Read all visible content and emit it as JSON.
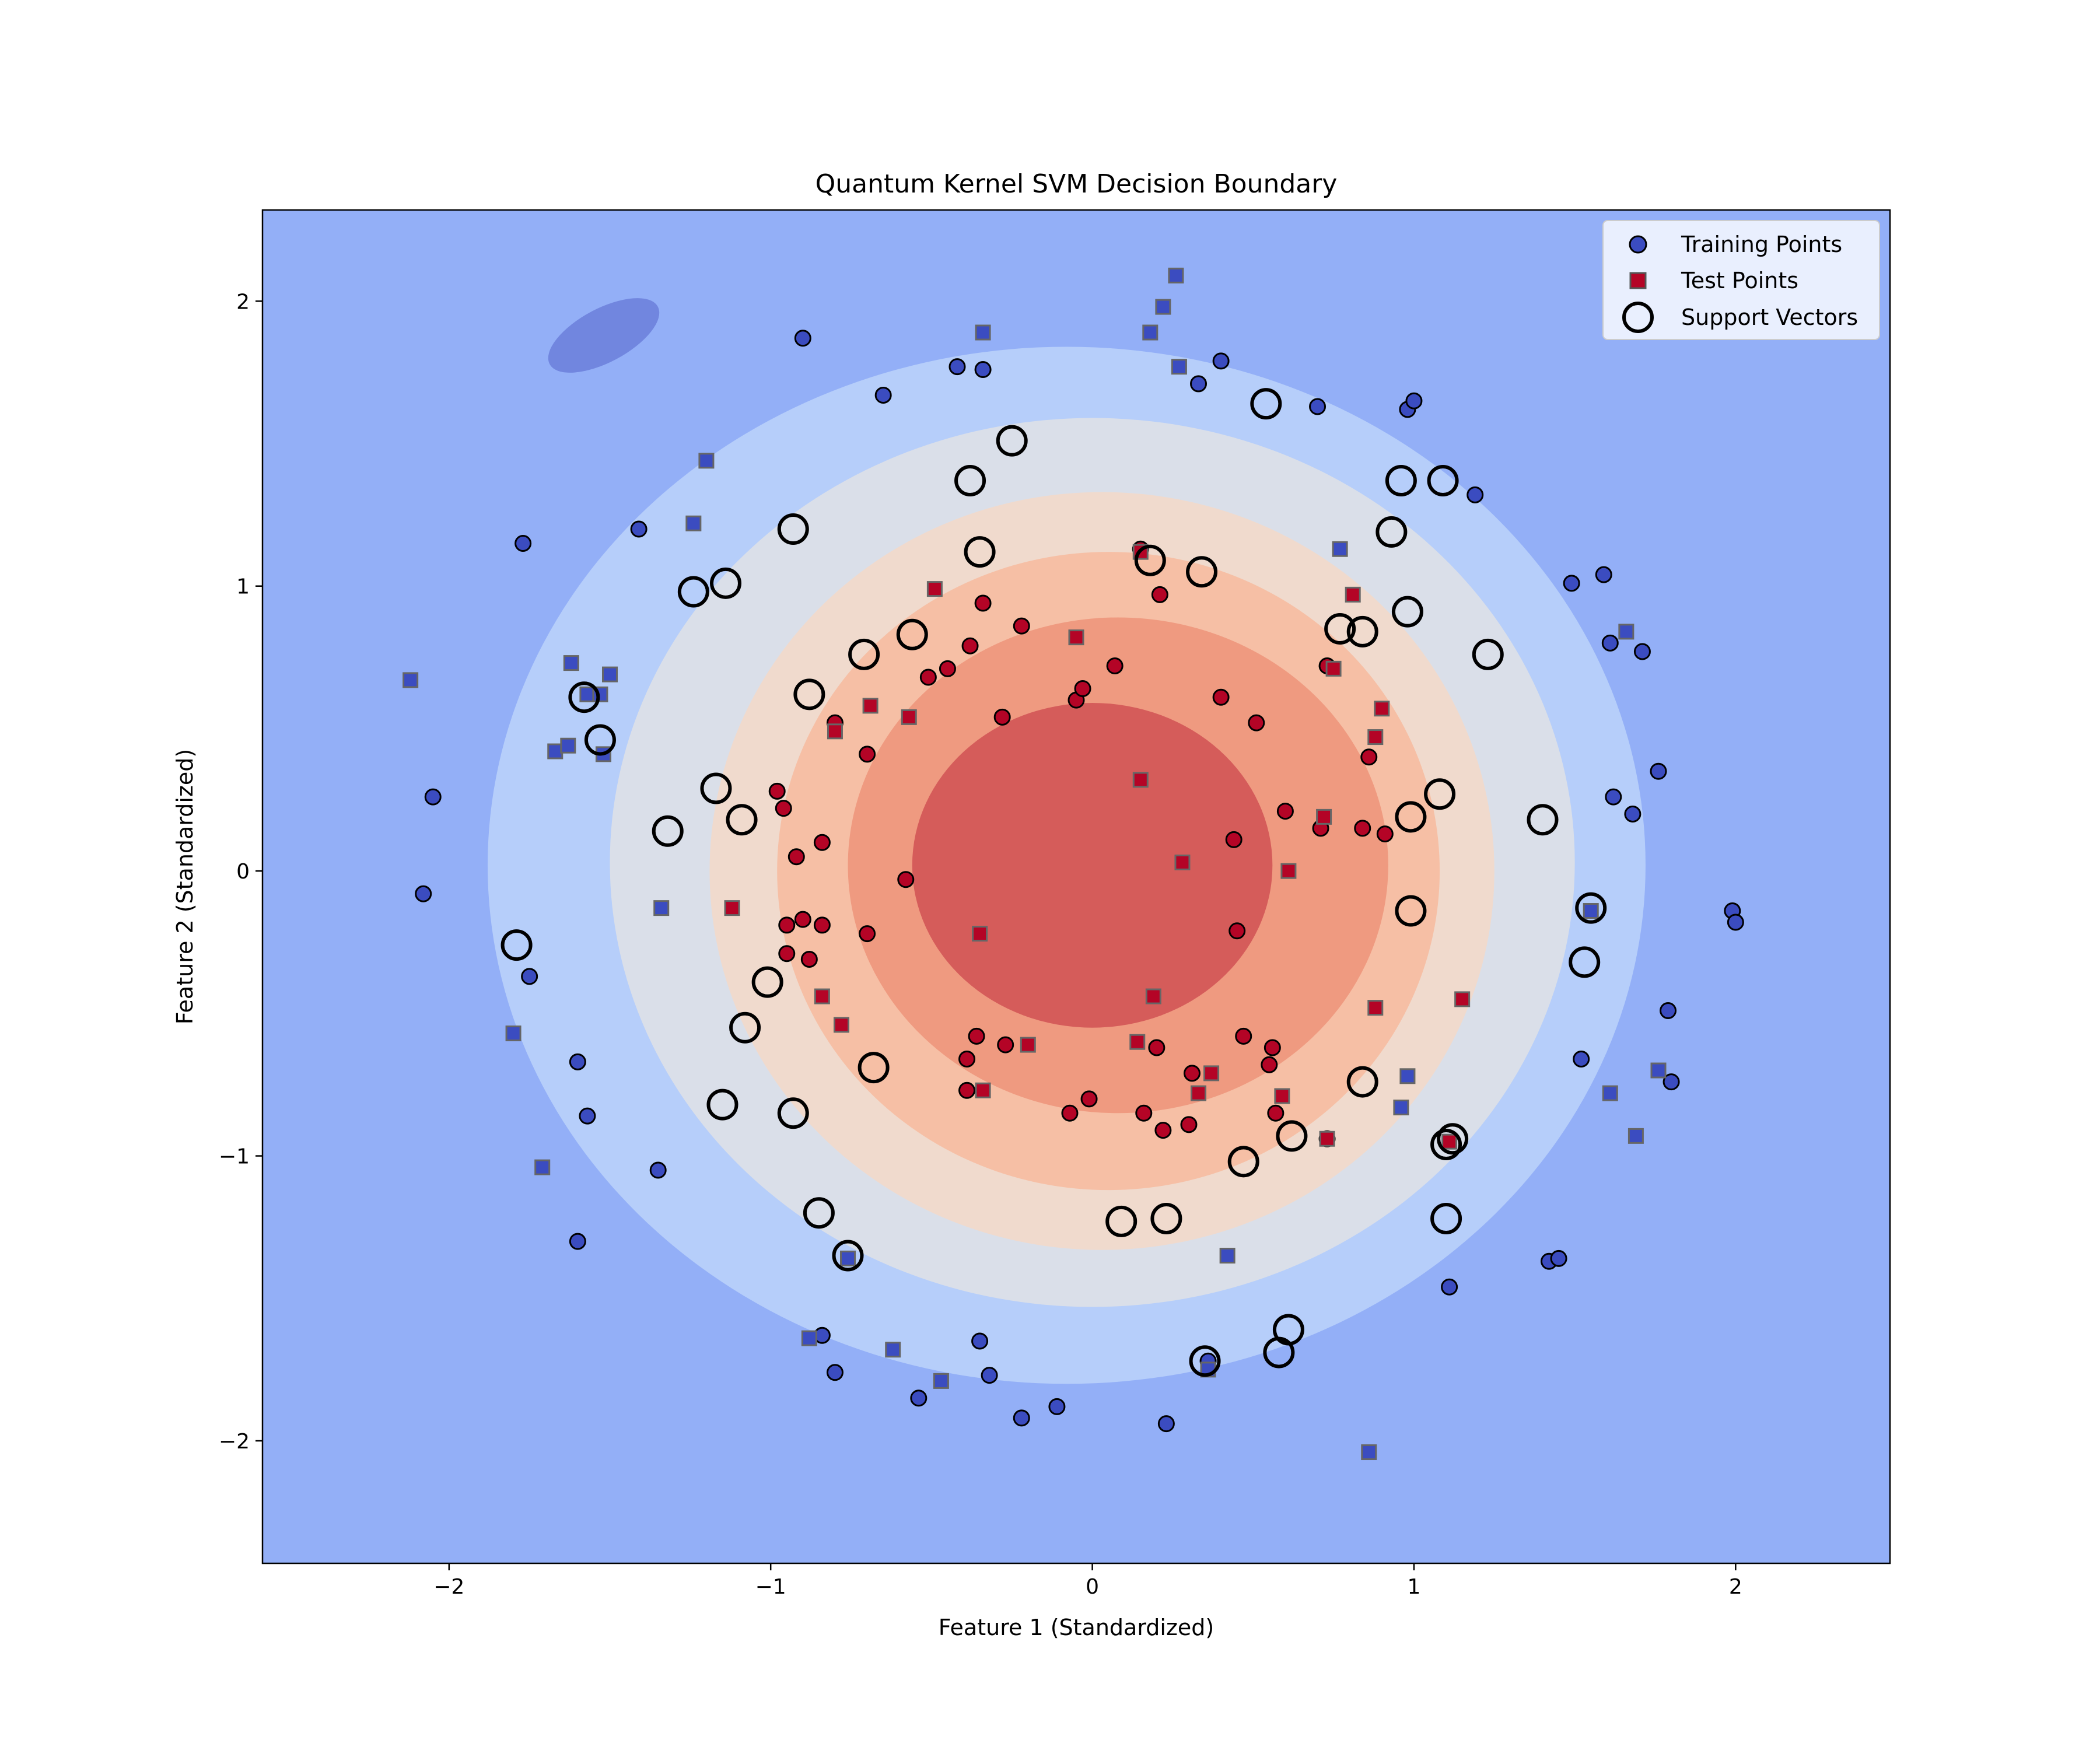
{
  "chart_data": {
    "type": "scatter",
    "title": "Quantum Kernel SVM Decision Boundary",
    "xlabel": "Feature 1 (Standardized)",
    "ylabel": "Feature 2 (Standardized)",
    "xlim": [
      -2.58,
      2.48
    ],
    "ylim": [
      -2.43,
      2.32
    ],
    "xticks": [
      -2,
      -1,
      0,
      1,
      2
    ],
    "yticks": [
      -2,
      -1,
      0,
      1,
      2
    ],
    "xtick_labels": [
      "−2",
      "−1",
      "0",
      "1",
      "2"
    ],
    "ytick_labels": [
      "−2",
      "−1",
      "0",
      "1",
      "2"
    ],
    "grid": false,
    "legend_position": "top-right",
    "colors": {
      "class0": "#3b4cc0",
      "class1": "#b40426",
      "background": "#93aff7",
      "edge": "#000000"
    },
    "decision_levels": [
      {
        "color": "#b6cefa",
        "rx": 1.8,
        "ry": 1.82,
        "cx": -0.08,
        "cy": 0.02
      },
      {
        "color": "#dadfe9",
        "rx": 1.5,
        "ry": 1.56,
        "cx": 0.0,
        "cy": 0.03
      },
      {
        "color": "#f0dacd",
        "rx": 1.22,
        "ry": 1.33,
        "cx": 0.03,
        "cy": 0.0
      },
      {
        "color": "#f6bfa5",
        "rx": 1.03,
        "ry": 1.12,
        "cx": 0.05,
        "cy": 0.0
      },
      {
        "color": "#ef9a80",
        "rx": 0.84,
        "ry": 0.87,
        "cx": 0.08,
        "cy": 0.02
      },
      {
        "color": "#d55c5a",
        "rx": 0.56,
        "ry": 0.57,
        "cx": 0.0,
        "cy": 0.02
      }
    ],
    "series": [
      {
        "name": "Training Points",
        "marker": "circle",
        "class0": [
          [
            -0.9,
            1.87
          ],
          [
            -0.42,
            1.77
          ],
          [
            -0.34,
            1.76
          ],
          [
            -0.65,
            1.67
          ],
          [
            0.33,
            1.71
          ],
          [
            0.4,
            1.79
          ],
          [
            0.7,
            1.63
          ],
          [
            0.98,
            1.62
          ],
          [
            1.0,
            1.65
          ],
          [
            -1.77,
            1.15
          ],
          [
            -1.41,
            1.2
          ],
          [
            1.19,
            1.32
          ],
          [
            1.49,
            1.01
          ],
          [
            1.59,
            1.04
          ],
          [
            1.61,
            0.8
          ],
          [
            1.71,
            0.77
          ],
          [
            1.76,
            0.35
          ],
          [
            1.62,
            0.26
          ],
          [
            1.68,
            0.2
          ],
          [
            -2.05,
            0.26
          ],
          [
            -2.08,
            -0.08
          ],
          [
            -1.75,
            -0.37
          ],
          [
            1.99,
            -0.14
          ],
          [
            2.0,
            -0.18
          ],
          [
            1.79,
            -0.49
          ],
          [
            1.52,
            -0.66
          ],
          [
            1.8,
            -0.74
          ],
          [
            -1.6,
            -0.67
          ],
          [
            -1.57,
            -0.86
          ],
          [
            -1.35,
            -1.05
          ],
          [
            -1.6,
            -1.3
          ],
          [
            -0.84,
            -1.63
          ],
          [
            -0.8,
            -1.76
          ],
          [
            -0.54,
            -1.85
          ],
          [
            -0.35,
            -1.65
          ],
          [
            -0.32,
            -1.77
          ],
          [
            -0.22,
            -1.92
          ],
          [
            -0.11,
            -1.88
          ],
          [
            0.23,
            -1.94
          ],
          [
            0.36,
            -1.72
          ],
          [
            1.11,
            -1.46
          ],
          [
            1.42,
            -1.37
          ],
          [
            1.45,
            -1.36
          ]
        ],
        "class1": [
          [
            0.15,
            1.13
          ],
          [
            0.21,
            0.97
          ],
          [
            -0.34,
            0.94
          ],
          [
            -0.22,
            0.86
          ],
          [
            -0.38,
            0.79
          ],
          [
            -0.51,
            0.68
          ],
          [
            -0.45,
            0.71
          ],
          [
            0.07,
            0.72
          ],
          [
            0.73,
            0.72
          ],
          [
            -0.05,
            0.6
          ],
          [
            -0.03,
            0.64
          ],
          [
            0.4,
            0.61
          ],
          [
            0.51,
            0.52
          ],
          [
            -0.28,
            0.54
          ],
          [
            -0.8,
            0.52
          ],
          [
            -0.7,
            0.41
          ],
          [
            0.86,
            0.4
          ],
          [
            -0.98,
            0.28
          ],
          [
            -0.96,
            0.22
          ],
          [
            0.6,
            0.21
          ],
          [
            0.71,
            0.15
          ],
          [
            0.84,
            0.15
          ],
          [
            0.91,
            0.13
          ],
          [
            -0.84,
            0.1
          ],
          [
            0.44,
            0.11
          ],
          [
            -0.92,
            0.05
          ],
          [
            -0.58,
            -0.03
          ],
          [
            -0.95,
            -0.19
          ],
          [
            -0.9,
            -0.17
          ],
          [
            -0.84,
            -0.19
          ],
          [
            -0.7,
            -0.22
          ],
          [
            0.45,
            -0.21
          ],
          [
            -0.95,
            -0.29
          ],
          [
            -0.88,
            -0.31
          ],
          [
            -0.36,
            -0.58
          ],
          [
            0.47,
            -0.58
          ],
          [
            -0.27,
            -0.61
          ],
          [
            0.2,
            -0.62
          ],
          [
            0.56,
            -0.62
          ],
          [
            -0.39,
            -0.66
          ],
          [
            0.55,
            -0.68
          ],
          [
            0.31,
            -0.71
          ],
          [
            -0.39,
            -0.77
          ],
          [
            -0.07,
            -0.85
          ],
          [
            -0.01,
            -0.8
          ],
          [
            0.16,
            -0.85
          ],
          [
            0.3,
            -0.89
          ],
          [
            0.57,
            -0.85
          ],
          [
            0.22,
            -0.91
          ],
          [
            0.73,
            -0.94
          ]
        ]
      },
      {
        "name": "Test Points",
        "marker": "square",
        "class0": [
          [
            0.26,
            2.09
          ],
          [
            0.22,
            1.98
          ],
          [
            0.18,
            1.89
          ],
          [
            0.27,
            1.77
          ],
          [
            -0.34,
            1.89
          ],
          [
            -1.2,
            1.44
          ],
          [
            -1.24,
            1.22
          ],
          [
            0.77,
            1.13
          ],
          [
            1.66,
            0.84
          ],
          [
            -2.12,
            0.67
          ],
          [
            -1.62,
            0.73
          ],
          [
            -1.5,
            0.69
          ],
          [
            -1.57,
            0.62
          ],
          [
            -1.53,
            0.62
          ],
          [
            -1.67,
            0.42
          ],
          [
            -1.63,
            0.44
          ],
          [
            -1.52,
            0.41
          ],
          [
            -1.34,
            -0.13
          ],
          [
            1.55,
            -0.14
          ],
          [
            -1.8,
            -0.57
          ],
          [
            -1.71,
            -1.04
          ],
          [
            0.98,
            -0.72
          ],
          [
            0.96,
            -0.83
          ],
          [
            1.61,
            -0.78
          ],
          [
            1.76,
            -0.7
          ],
          [
            1.69,
            -0.93
          ],
          [
            0.42,
            -1.35
          ],
          [
            -0.76,
            -1.36
          ],
          [
            -0.88,
            -1.64
          ],
          [
            -0.62,
            -1.68
          ],
          [
            -0.47,
            -1.79
          ],
          [
            0.36,
            -1.75
          ],
          [
            0.86,
            -2.04
          ]
        ],
        "class1": [
          [
            0.15,
            1.12
          ],
          [
            -0.49,
            0.99
          ],
          [
            0.81,
            0.97
          ],
          [
            -0.05,
            0.82
          ],
          [
            0.75,
            0.71
          ],
          [
            -0.69,
            0.58
          ],
          [
            -0.57,
            0.54
          ],
          [
            0.9,
            0.57
          ],
          [
            -0.8,
            0.49
          ],
          [
            0.88,
            0.47
          ],
          [
            0.15,
            0.32
          ],
          [
            0.72,
            0.19
          ],
          [
            0.61,
            0.0
          ],
          [
            0.28,
            0.03
          ],
          [
            -1.12,
            -0.13
          ],
          [
            -0.35,
            -0.22
          ],
          [
            -0.84,
            -0.44
          ],
          [
            0.19,
            -0.44
          ],
          [
            1.15,
            -0.45
          ],
          [
            0.88,
            -0.48
          ],
          [
            -0.78,
            -0.54
          ],
          [
            0.14,
            -0.6
          ],
          [
            -0.2,
            -0.61
          ],
          [
            0.37,
            -0.71
          ],
          [
            -0.34,
            -0.77
          ],
          [
            0.33,
            -0.78
          ],
          [
            0.59,
            -0.79
          ],
          [
            0.73,
            -0.94
          ],
          [
            1.11,
            -0.95
          ]
        ]
      },
      {
        "name": "Support Vectors",
        "marker": "ring",
        "class0": [
          [
            0.54,
            1.64
          ],
          [
            -0.25,
            1.51
          ],
          [
            -0.38,
            1.37
          ],
          [
            0.96,
            1.37
          ],
          [
            1.09,
            1.37
          ],
          [
            -0.93,
            1.2
          ],
          [
            0.93,
            1.19
          ],
          [
            -1.14,
            1.01
          ],
          [
            -1.24,
            0.98
          ],
          [
            1.23,
            0.76
          ],
          [
            -1.58,
            0.61
          ],
          [
            -1.53,
            0.46
          ],
          [
            1.4,
            0.18
          ],
          [
            1.55,
            -0.13
          ],
          [
            -1.79,
            -0.26
          ],
          [
            1.53,
            -0.32
          ],
          [
            -1.08,
            -0.55
          ],
          [
            -1.15,
            -0.82
          ],
          [
            1.1,
            -0.96
          ],
          [
            1.12,
            -0.94
          ],
          [
            -0.85,
            -1.2
          ],
          [
            1.1,
            -1.22
          ],
          [
            -0.76,
            -1.35
          ],
          [
            0.61,
            -1.61
          ],
          [
            0.35,
            -1.72
          ],
          [
            0.58,
            -1.69
          ]
        ],
        "class1": [
          [
            0.18,
            1.09
          ],
          [
            -0.35,
            1.12
          ],
          [
            0.34,
            1.05
          ],
          [
            0.98,
            0.91
          ],
          [
            -0.56,
            0.83
          ],
          [
            0.77,
            0.85
          ],
          [
            0.84,
            0.84
          ],
          [
            -0.71,
            0.76
          ],
          [
            -0.88,
            0.62
          ],
          [
            -1.17,
            0.29
          ],
          [
            1.08,
            0.27
          ],
          [
            -1.09,
            0.18
          ],
          [
            0.99,
            0.19
          ],
          [
            -1.32,
            0.14
          ],
          [
            0.99,
            -0.14
          ],
          [
            -1.01,
            -0.39
          ],
          [
            -0.68,
            -0.69
          ],
          [
            0.84,
            -0.74
          ],
          [
            -0.93,
            -0.85
          ],
          [
            0.62,
            -0.93
          ],
          [
            0.47,
            -1.02
          ],
          [
            0.09,
            -1.23
          ],
          [
            0.23,
            -1.22
          ]
        ]
      }
    ]
  }
}
